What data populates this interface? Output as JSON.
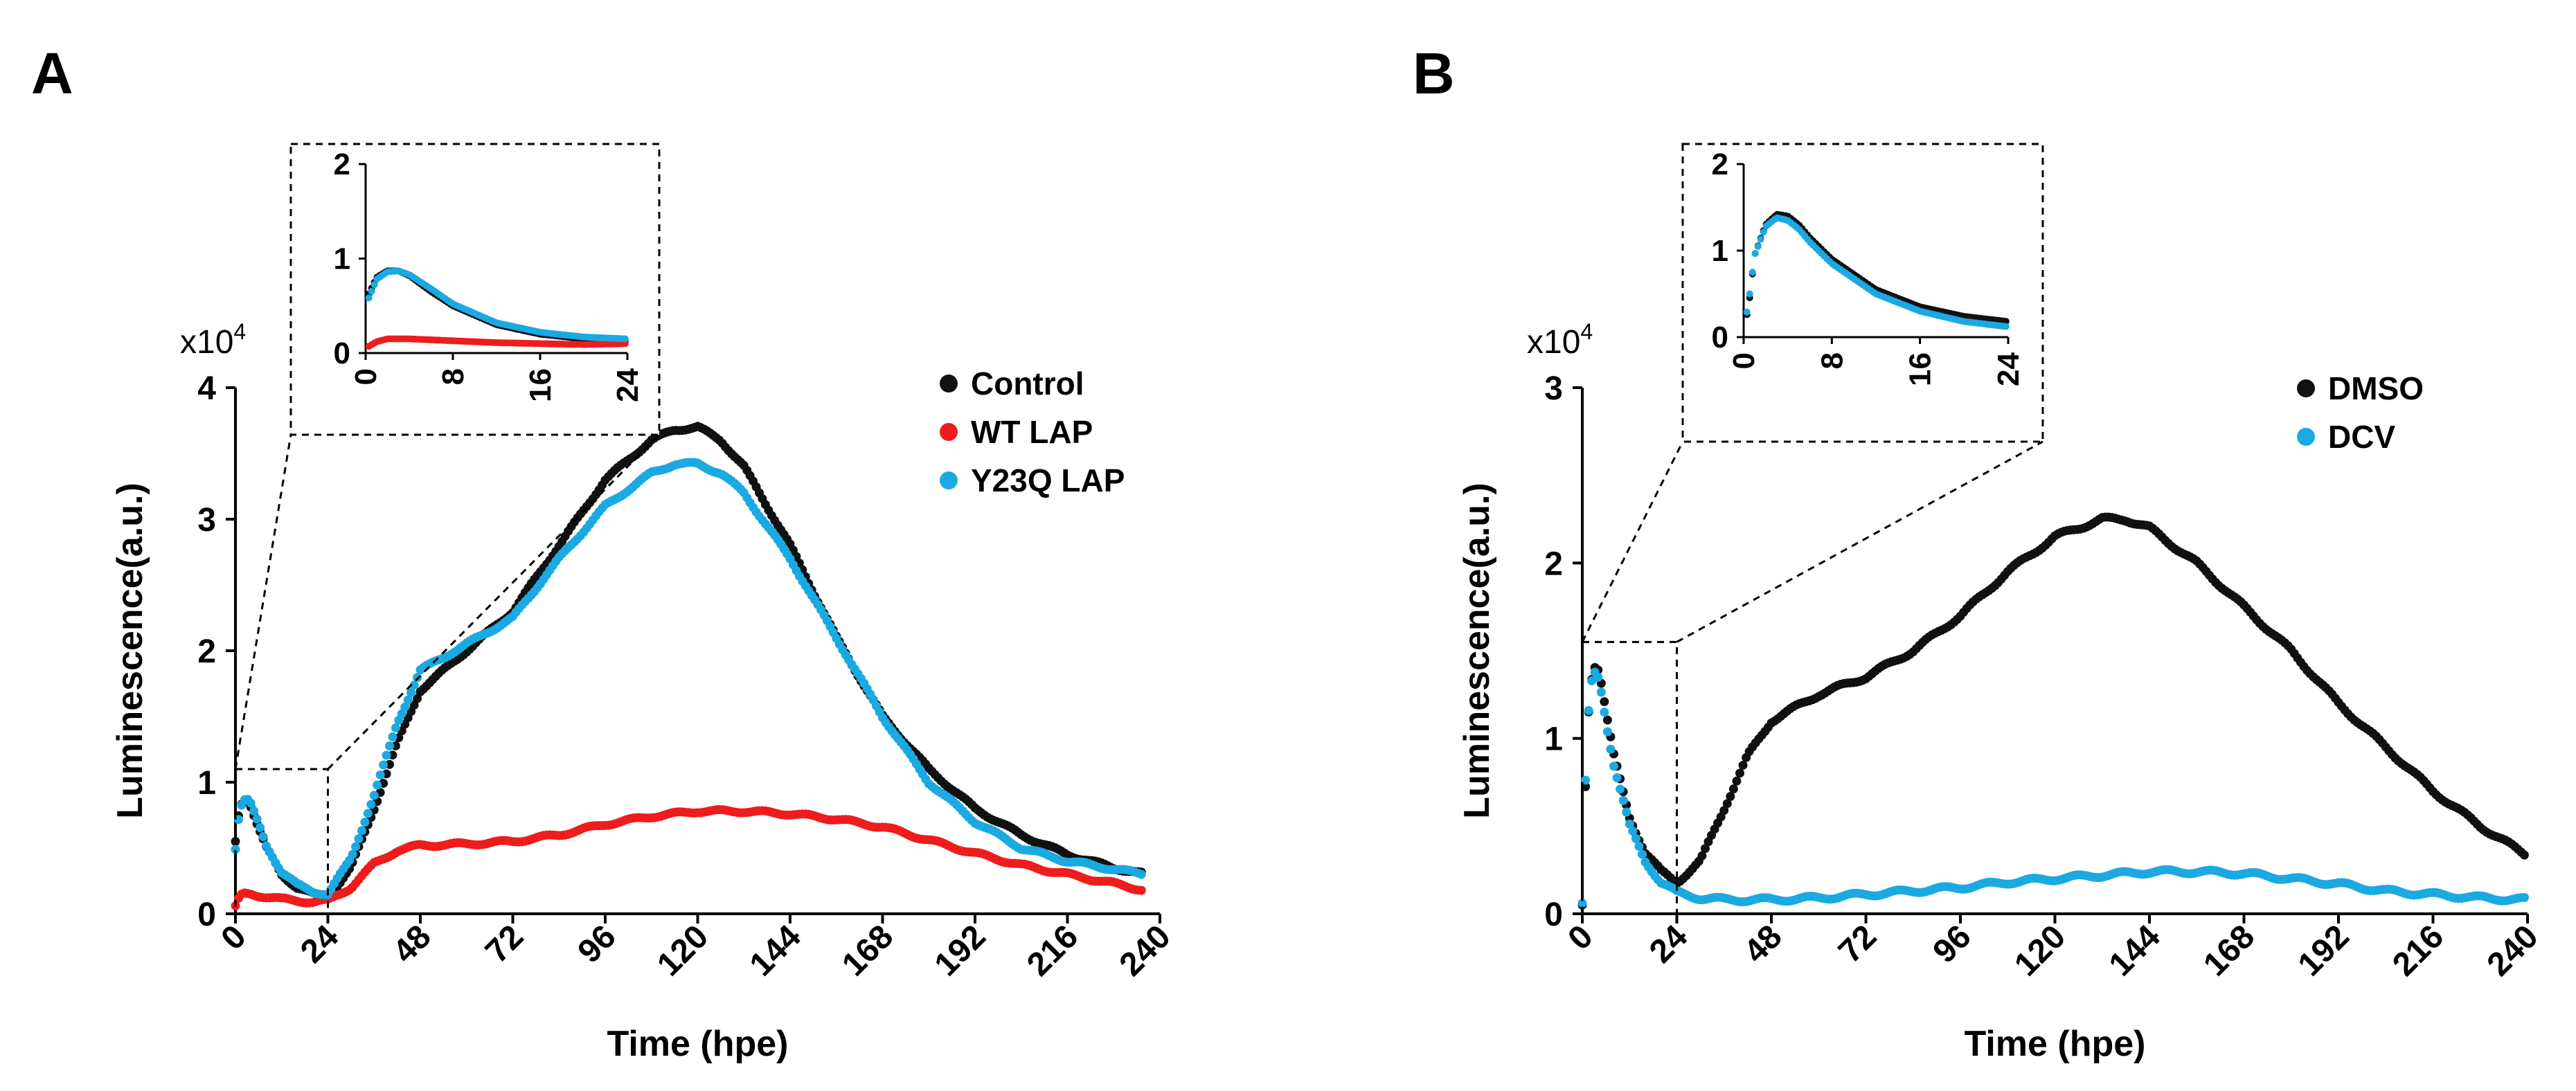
{
  "chart_data": [
    {
      "panel_label": "A",
      "type": "scatter",
      "xlabel": "Time (hpe)",
      "ylabel": "Luminescence(a.u.)",
      "y_multiplier": "x10",
      "y_multiplier_exp": "4",
      "xlim": [
        0,
        240
      ],
      "ylim": [
        0,
        4
      ],
      "x_ticks": [
        "0",
        "24",
        "48",
        "72",
        "96",
        "120",
        "144",
        "168",
        "192",
        "216",
        "240"
      ],
      "y_ticks": [
        "0",
        "1",
        "2",
        "3",
        "4"
      ],
      "legend": [
        "Control",
        "WT LAP",
        "Y23Q LAP"
      ],
      "inset": {
        "xlim": [
          0,
          24
        ],
        "ylim": [
          0,
          2
        ],
        "x_ticks": [
          "0",
          "8",
          "16",
          "24"
        ],
        "y_ticks": [
          "0",
          "1",
          "2"
        ]
      },
      "series": [
        {
          "name": "Control",
          "color": "#111111",
          "x": [
            0,
            1,
            2,
            3,
            4,
            6,
            8,
            12,
            16,
            20,
            24,
            30,
            36,
            42,
            48,
            60,
            72,
            84,
            96,
            108,
            114,
            120,
            126,
            132,
            144,
            156,
            168,
            180,
            192,
            204,
            216,
            228,
            236
          ],
          "y": [
            0.55,
            0.8,
            0.87,
            0.87,
            0.82,
            0.65,
            0.5,
            0.3,
            0.2,
            0.15,
            0.12,
            0.35,
            0.8,
            1.3,
            1.7,
            2.0,
            2.3,
            2.8,
            3.3,
            3.6,
            3.68,
            3.7,
            3.6,
            3.4,
            2.8,
            2.1,
            1.5,
            1.1,
            0.8,
            0.6,
            0.45,
            0.35,
            0.3
          ]
        },
        {
          "name": "WT LAP",
          "color": "#ee1c1c",
          "x": [
            0,
            1,
            2,
            4,
            8,
            12,
            16,
            20,
            24,
            30,
            36,
            42,
            48,
            60,
            72,
            84,
            96,
            108,
            120,
            132,
            144,
            156,
            168,
            180,
            192,
            204,
            216,
            228,
            236
          ],
          "y": [
            0.05,
            0.12,
            0.15,
            0.15,
            0.13,
            0.11,
            0.1,
            0.09,
            0.1,
            0.2,
            0.38,
            0.48,
            0.52,
            0.53,
            0.55,
            0.6,
            0.68,
            0.74,
            0.78,
            0.78,
            0.76,
            0.72,
            0.66,
            0.56,
            0.46,
            0.37,
            0.3,
            0.23,
            0.18
          ]
        },
        {
          "name": "Y23Q LAP",
          "color": "#1ba9e1",
          "x": [
            0,
            1,
            2,
            3,
            4,
            6,
            8,
            12,
            16,
            20,
            24,
            30,
            36,
            42,
            48,
            60,
            72,
            84,
            96,
            108,
            114,
            120,
            126,
            132,
            144,
            156,
            168,
            180,
            192,
            204,
            216,
            228,
            236
          ],
          "y": [
            0.5,
            0.78,
            0.86,
            0.87,
            0.83,
            0.68,
            0.52,
            0.32,
            0.22,
            0.17,
            0.15,
            0.42,
            0.9,
            1.45,
            1.85,
            2.05,
            2.25,
            2.7,
            3.1,
            3.35,
            3.42,
            3.42,
            3.35,
            3.2,
            2.7,
            2.1,
            1.5,
            1.0,
            0.7,
            0.5,
            0.4,
            0.34,
            0.3
          ]
        }
      ]
    },
    {
      "panel_label": "B",
      "type": "scatter",
      "xlabel": "Time (hpe)",
      "ylabel": "Luminescence(a.u.)",
      "y_multiplier": "x10",
      "y_multiplier_exp": "4",
      "xlim": [
        0,
        240
      ],
      "ylim": [
        0,
        3
      ],
      "x_ticks": [
        "0",
        "24",
        "48",
        "72",
        "96",
        "120",
        "144",
        "168",
        "192",
        "216",
        "240"
      ],
      "y_ticks": [
        "0",
        "1",
        "2",
        "3"
      ],
      "legend": [
        "DMSO",
        "DCV"
      ],
      "inset": {
        "xlim": [
          0,
          24
        ],
        "ylim": [
          0,
          2
        ],
        "x_ticks": [
          "0",
          "8",
          "16",
          "24"
        ],
        "y_ticks": [
          "0",
          "1",
          "2"
        ]
      },
      "series": [
        {
          "name": "DMSO",
          "color": "#111111",
          "x": [
            0,
            0.5,
            1,
            2,
            3,
            4,
            5,
            6,
            8,
            12,
            16,
            20,
            24,
            30,
            36,
            42,
            48,
            60,
            72,
            84,
            96,
            108,
            120,
            132,
            138,
            144,
            156,
            168,
            180,
            192,
            204,
            216,
            228,
            240
          ],
          "y": [
            0.05,
            0.4,
            0.95,
            1.3,
            1.42,
            1.4,
            1.3,
            1.15,
            0.9,
            0.55,
            0.35,
            0.24,
            0.18,
            0.3,
            0.6,
            0.9,
            1.1,
            1.25,
            1.35,
            1.5,
            1.7,
            1.95,
            2.15,
            2.25,
            2.25,
            2.2,
            2.0,
            1.75,
            1.5,
            1.2,
            0.95,
            0.7,
            0.5,
            0.33
          ]
        },
        {
          "name": "DCV",
          "color": "#1ba9e1",
          "x": [
            0,
            0.5,
            1,
            2,
            3,
            4,
            5,
            6,
            8,
            12,
            16,
            20,
            24,
            30,
            36,
            48,
            60,
            72,
            84,
            96,
            108,
            120,
            132,
            144,
            156,
            168,
            180,
            192,
            204,
            216,
            228,
            240
          ],
          "y": [
            0.05,
            0.45,
            0.95,
            1.28,
            1.38,
            1.35,
            1.25,
            1.1,
            0.85,
            0.5,
            0.3,
            0.18,
            0.12,
            0.09,
            0.08,
            0.08,
            0.09,
            0.11,
            0.13,
            0.15,
            0.18,
            0.2,
            0.22,
            0.24,
            0.24,
            0.23,
            0.2,
            0.17,
            0.13,
            0.11,
            0.09,
            0.08
          ]
        }
      ]
    }
  ]
}
